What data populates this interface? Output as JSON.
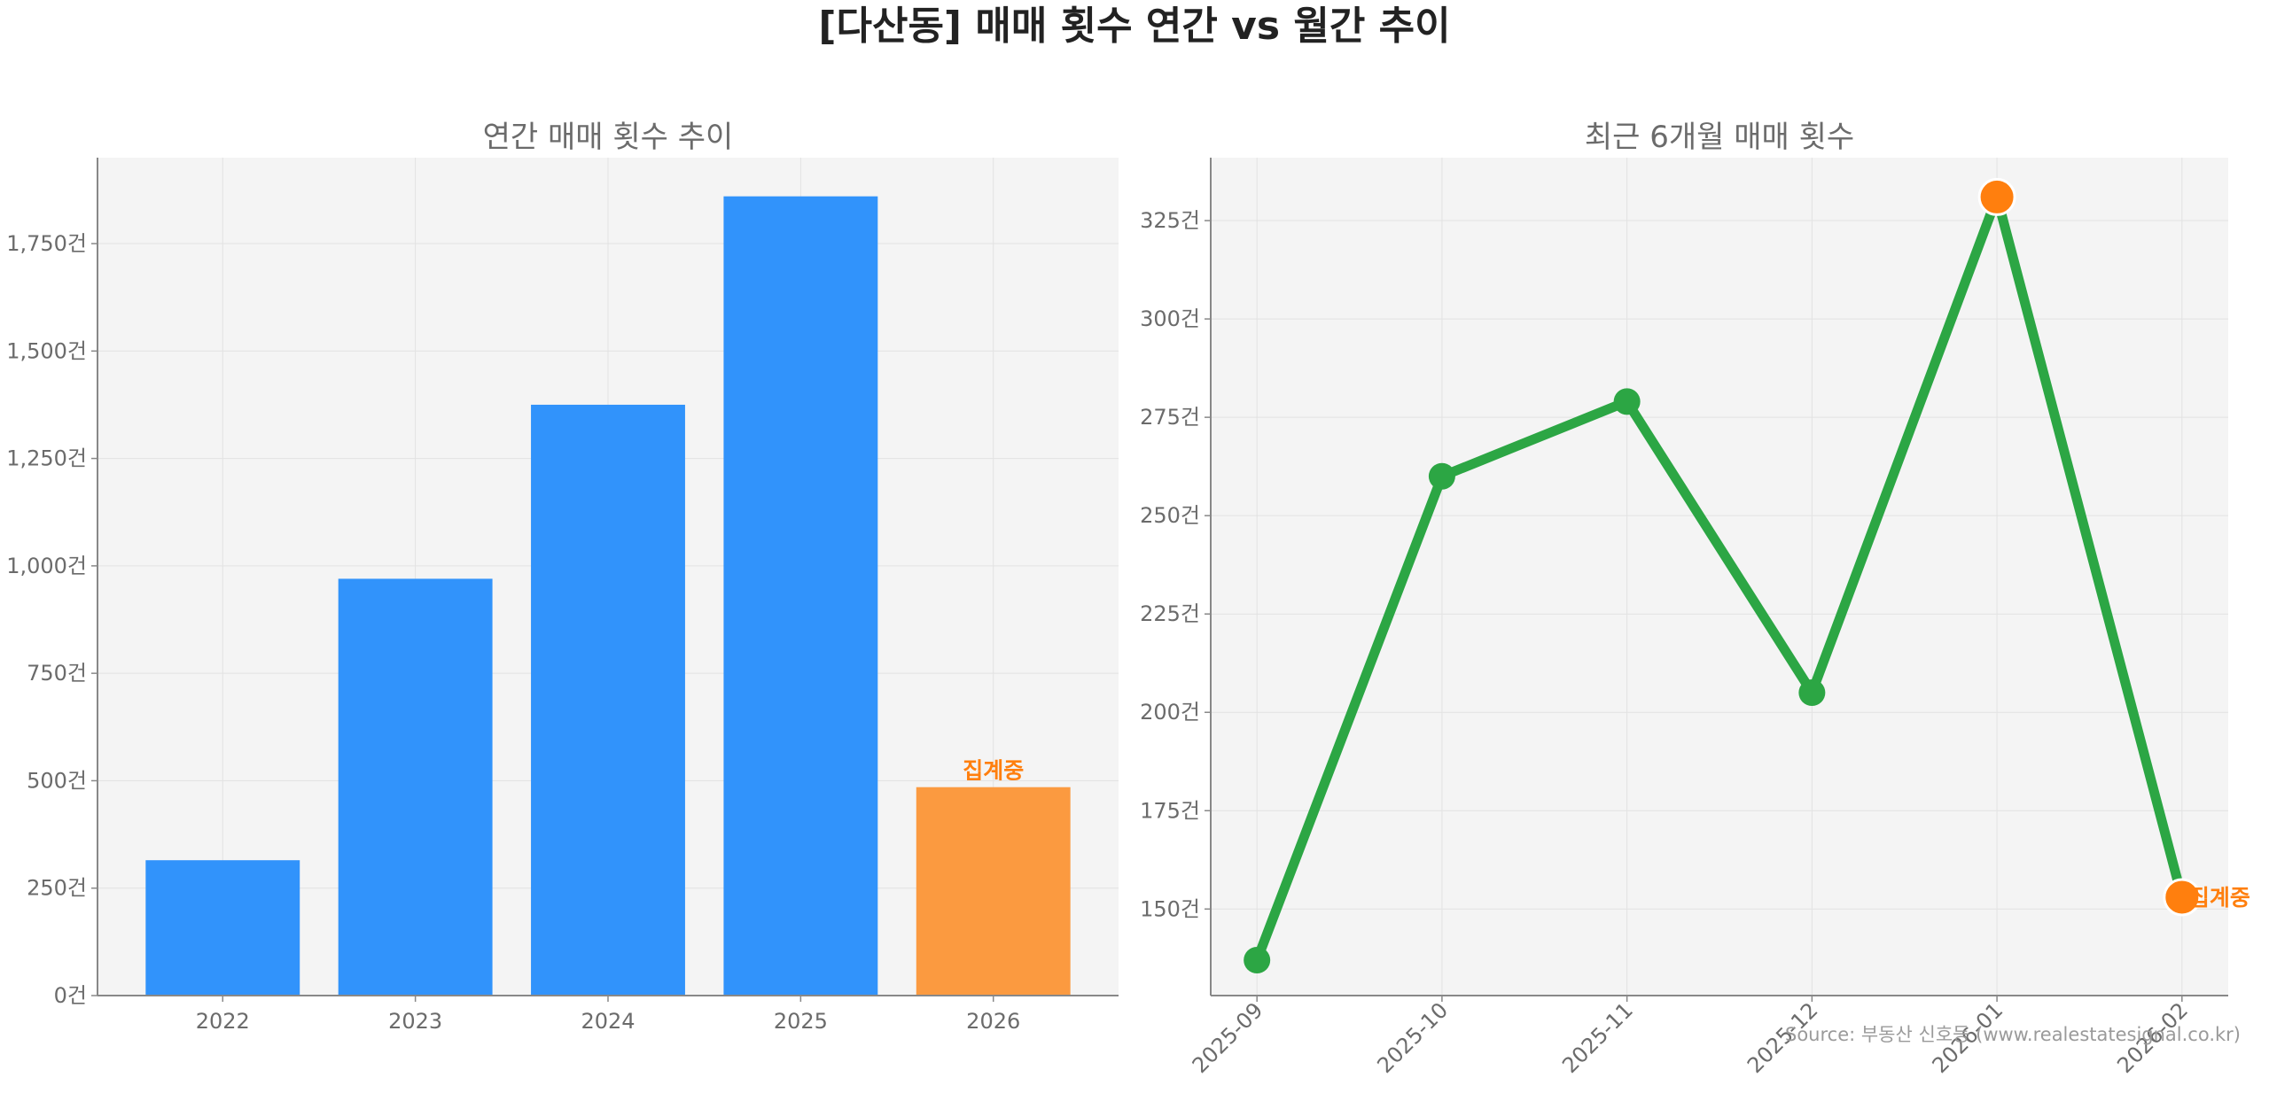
{
  "title": "[다산동] 매매 횟수 연간 vs 월간 추이",
  "source": "Source: 부동산 신호등 (www.realestatesignal.co.kr)",
  "colors": {
    "bar": "#3193fb",
    "bar_partial": "#fb9a40",
    "line": "#2ca644",
    "highlight": "#ff7f0e",
    "annotation": "#ff7f0e",
    "panel_bg": "#f4f4f4",
    "grid": "#e2e2e2",
    "axis": "#888888"
  },
  "chart_data": [
    {
      "type": "bar",
      "title": "연간 매매 횟수 추이",
      "categories": [
        "2022",
        "2023",
        "2024",
        "2025",
        "2026"
      ],
      "values": [
        315,
        970,
        1375,
        1860,
        485
      ],
      "partial_index": 4,
      "annotation": "집계중",
      "ylim": [
        0,
        1950
      ],
      "yticks": [
        0,
        250,
        500,
        750,
        1000,
        1250,
        1500,
        1750
      ],
      "ytick_labels": [
        "0건",
        "250건",
        "500건",
        "750건",
        "1,000건",
        "1,250건",
        "1,500건",
        "1,750건"
      ],
      "grid": true,
      "xlabel": "",
      "ylabel": ""
    },
    {
      "type": "line",
      "title": "최근 6개월 매매 횟수",
      "x": [
        "2025-09",
        "2025-10",
        "2025-11",
        "2025-12",
        "2026-01",
        "2026-02"
      ],
      "values": [
        137,
        260,
        279,
        205,
        331,
        153
      ],
      "highlight_indices": [
        4,
        5
      ],
      "annotation": "집계중",
      "annotation_index": 5,
      "ylim": [
        128,
        341
      ],
      "yticks": [
        150,
        175,
        200,
        225,
        250,
        275,
        300,
        325
      ],
      "ytick_labels": [
        "150건",
        "175건",
        "200건",
        "225건",
        "250건",
        "275건",
        "300건",
        "325건"
      ],
      "grid": true,
      "xlabel": "",
      "ylabel": ""
    }
  ]
}
